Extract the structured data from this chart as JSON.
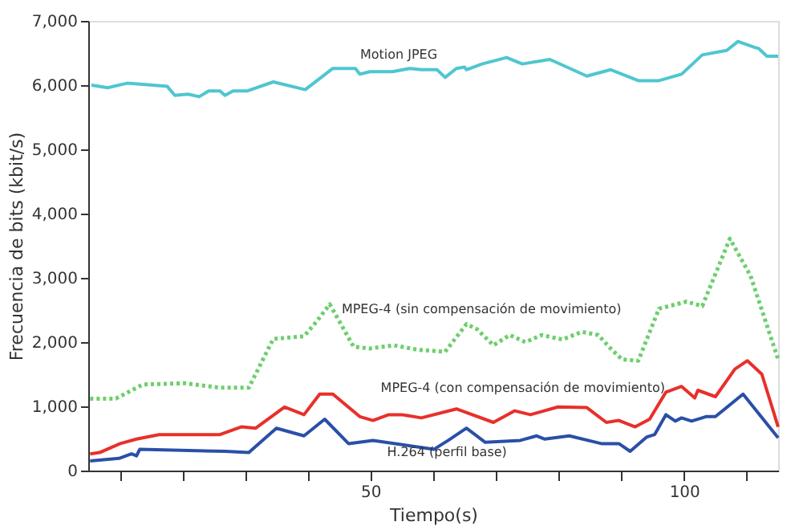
{
  "chart_data": {
    "type": "line",
    "xlabel": "Tiempo(s)",
    "ylabel": "Frecuencia de bits (kbit/s)",
    "xlim": [
      5,
      115
    ],
    "ylim": [
      0,
      7000
    ],
    "xticks": [
      {
        "value": 10,
        "label": null
      },
      {
        "value": 20,
        "label": null
      },
      {
        "value": 30,
        "label": null
      },
      {
        "value": 40,
        "label": null
      },
      50,
      {
        "value": 60,
        "label": null
      },
      {
        "value": 70,
        "label": null
      },
      {
        "value": 80,
        "label": null
      },
      {
        "value": 90,
        "label": null
      },
      100,
      {
        "value": 110,
        "label": null
      }
    ],
    "yticks": [
      0,
      {
        "value": 1000,
        "label": "1,000"
      },
      {
        "value": 2000,
        "label": "2,000"
      },
      {
        "value": 3000,
        "label": "3,000"
      },
      {
        "value": 4000,
        "label": "4,000"
      },
      {
        "value": 5000,
        "label": "5,000"
      },
      {
        "value": 6000,
        "label": "6,000"
      },
      {
        "value": 7000,
        "label": "7,000"
      }
    ],
    "grid": false,
    "series": [
      {
        "name": "Motion JPEG",
        "color": "#4fc6d0",
        "line_style": "solid",
        "x": [
          5.5,
          8.1,
          11.2,
          17.6,
          18.8,
          20.9,
          22.7,
          24.2,
          26.0,
          26.8,
          28.1,
          30.4,
          34.5,
          39.6,
          44,
          47.6,
          48.3,
          49.9,
          53.5,
          56.3,
          58.1,
          60.6,
          61.9,
          63.7,
          65,
          65.3,
          67.8,
          71.7,
          74.2,
          78.6,
          84.5,
          88.3,
          92.7,
          96,
          99.6,
          102.9,
          106.8,
          108.6,
          111.2,
          111.9,
          113.2,
          115
        ],
        "values": [
          6000,
          5960,
          6030,
          5980,
          5840,
          5860,
          5820,
          5910,
          5910,
          5840,
          5910,
          5910,
          6050,
          5930,
          6260,
          6260,
          6170,
          6210,
          6210,
          6260,
          6240,
          6240,
          6120,
          6260,
          6280,
          6240,
          6330,
          6430,
          6330,
          6400,
          6140,
          6240,
          6070,
          6070,
          6170,
          6470,
          6540,
          6680,
          6590,
          6570,
          6450,
          6450
        ]
      },
      {
        "name": "MPEG-4 (sin compensación de movimiento)",
        "color": "#6ccf6c",
        "line_style": "dotted",
        "x": [
          5.3,
          9.4,
          13.7,
          20.4,
          26,
          30.6,
          34.5,
          39.4,
          41.4,
          43.5,
          47.3,
          49.9,
          53.7,
          57.6,
          61.9,
          65.3,
          67,
          69.6,
          72.2,
          74.7,
          77.3,
          80.6,
          83.7,
          86.3,
          88.3,
          90.1,
          92.7,
          96,
          100.4,
          102.9,
          107.3,
          110.6,
          115
        ],
        "values": [
          1120,
          1120,
          1340,
          1360,
          1290,
          1290,
          2050,
          2090,
          2320,
          2590,
          1930,
          1900,
          1950,
          1880,
          1850,
          2280,
          2200,
          1950,
          2110,
          2000,
          2110,
          2040,
          2160,
          2110,
          1900,
          1730,
          1710,
          2520,
          2630,
          2560,
          3610,
          3030,
          1730
        ]
      },
      {
        "name": "MPEG-4 (con compensación de movimiento)",
        "color": "#e8302a",
        "line_style": "solid",
        "x": [
          5.3,
          6.8,
          10.1,
          12.7,
          16.3,
          26,
          29.4,
          31.7,
          36.3,
          39.4,
          41.9,
          44,
          48.3,
          50.4,
          52.9,
          55,
          58.1,
          63.7,
          69.6,
          73,
          75.5,
          79.9,
          84.5,
          87.6,
          89.6,
          92.2,
          94.5,
          97.1,
          99.6,
          101.7,
          102.2,
          105,
          108.1,
          110.1,
          112.4,
          115
        ],
        "values": [
          260,
          280,
          420,
          490,
          560,
          560,
          680,
          660,
          990,
          870,
          1190,
          1190,
          840,
          780,
          870,
          870,
          820,
          960,
          750,
          930,
          870,
          990,
          980,
          750,
          780,
          680,
          800,
          1220,
          1310,
          1130,
          1250,
          1150,
          1580,
          1710,
          1500,
          680
        ]
      },
      {
        "name": "H.264 (perfil base)",
        "color": "#2a4fa8",
        "line_style": "solid",
        "x": [
          5.3,
          9.9,
          11.9,
          12.7,
          13.2,
          26.8,
          30.6,
          35,
          39.4,
          42.7,
          46.5,
          50.4,
          60.1,
          62.4,
          65.3,
          68.3,
          73.9,
          76.5,
          77.8,
          81.7,
          86.8,
          89.6,
          91.4,
          94,
          95.3,
          97.1,
          98.6,
          99.6,
          101.2,
          103.5,
          105,
          109.4,
          115
        ],
        "values": [
          150,
          190,
          260,
          230,
          330,
          300,
          280,
          660,
          540,
          800,
          420,
          470,
          330,
          470,
          660,
          440,
          470,
          540,
          490,
          540,
          420,
          420,
          300,
          520,
          560,
          870,
          770,
          820,
          770,
          840,
          840,
          1190,
          510
        ]
      }
    ]
  }
}
